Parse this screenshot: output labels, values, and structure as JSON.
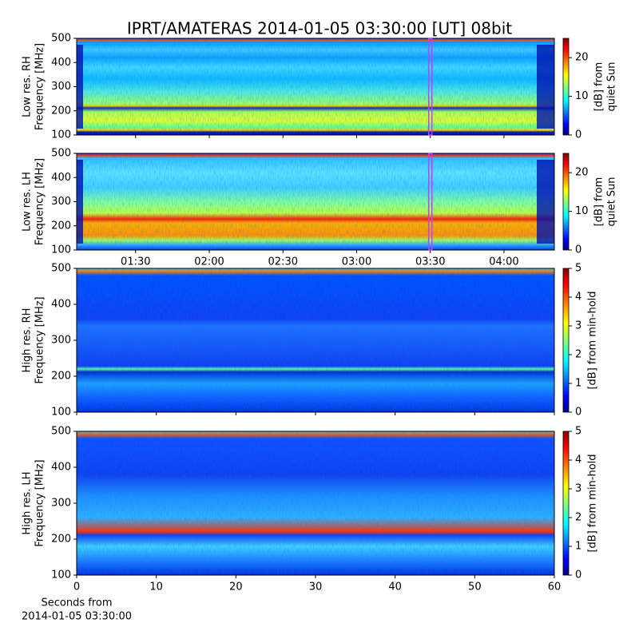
{
  "chart_data": {
    "type": "heatmap",
    "title": "IPRT/AMATERAS 2014-01-05 03:30:00 [UT]   08bit",
    "colormap": "jet",
    "panels": [
      {
        "ylabel": [
          "Low res. RH",
          "Frequency [MHz]"
        ],
        "ylim": [
          100,
          500
        ],
        "yticks": [
          100,
          200,
          300,
          400,
          500
        ],
        "colorbar_label": [
          "[dB] from",
          "quiet Sun"
        ],
        "clim": [
          0,
          25
        ],
        "cticks": [
          0,
          10,
          20
        ]
      },
      {
        "ylabel": [
          "Low res. LH",
          "Frequency [MHz]"
        ],
        "ylim": [
          100,
          500
        ],
        "yticks": [
          100,
          200,
          300,
          400,
          500
        ],
        "colorbar_label": [
          "[dB] from",
          "quiet Sun"
        ],
        "clim": [
          0,
          25
        ],
        "cticks": [
          0,
          10,
          20
        ]
      },
      {
        "ylabel": [
          "High res. RH",
          "Frequency [MHz]"
        ],
        "ylim": [
          100,
          500
        ],
        "yticks": [
          100,
          200,
          300,
          400,
          500
        ],
        "colorbar_label": [
          "[dB] from min-hold"
        ],
        "clim": [
          0,
          5
        ],
        "cticks": [
          0,
          1,
          2,
          3,
          4,
          5
        ]
      },
      {
        "ylabel": [
          "High res. LH",
          "Frequency [MHz]"
        ],
        "ylim": [
          100,
          500
        ],
        "yticks": [
          100,
          200,
          300,
          400,
          500
        ],
        "colorbar_label": [
          "[dB] from min-hold"
        ],
        "clim": [
          0,
          5
        ],
        "cticks": [
          0,
          1,
          2,
          3,
          4,
          5
        ]
      }
    ],
    "time_xlim": [
      66,
      260.5
    ],
    "time_xticks": [
      {
        "value": 90,
        "label": "01:30"
      },
      {
        "value": 120,
        "label": "02:00"
      },
      {
        "value": 150,
        "label": "02:30"
      },
      {
        "value": 180,
        "label": "03:00"
      },
      {
        "value": 210,
        "label": "03:30"
      },
      {
        "value": 240,
        "label": "04:00"
      }
    ],
    "time_marker": 210,
    "seconds_xlim": [
      0,
      60
    ],
    "seconds_xticks": [
      0,
      10,
      20,
      30,
      40,
      50,
      60
    ],
    "seconds_xlabel": [
      "Seconds from",
      "2014-01-05 03:30:00"
    ]
  }
}
